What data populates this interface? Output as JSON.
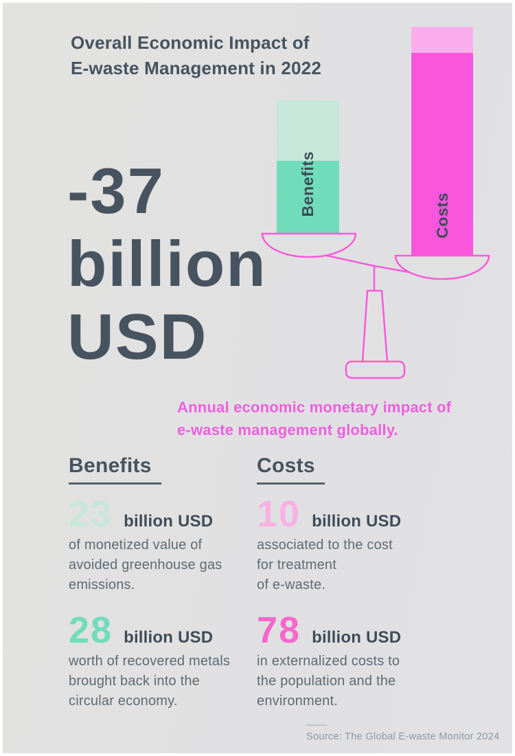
{
  "title": {
    "lines": [
      "Overall Economic Impact of",
      "E-waste Management in 2022"
    ]
  },
  "headline": {
    "lines": [
      "-37",
      "billion",
      "USD"
    ]
  },
  "scale": {
    "benefits_label": "Benefits",
    "costs_label": "Costs"
  },
  "subtitle": {
    "lines": [
      "Annual economic monetary impact of",
      "e-waste management globally."
    ]
  },
  "sections": {
    "benefits": {
      "header": "Benefits",
      "items": [
        {
          "value": "23",
          "unit": "billion USD",
          "lines": [
            "of monetized value of",
            "avoided greenhouse gas",
            "emissions."
          ]
        },
        {
          "value": "28",
          "unit": "billion USD",
          "lines": [
            "worth of recovered metals",
            "brought back into the",
            "circular economy."
          ]
        }
      ]
    },
    "costs": {
      "header": "Costs",
      "items": [
        {
          "value": "10",
          "unit": "billion USD",
          "lines": [
            "associated to the cost",
            "for treatment",
            "of e-waste."
          ]
        },
        {
          "value": "78",
          "unit": "billion USD",
          "lines": [
            "in externalized costs to",
            "the population and the",
            "environment."
          ]
        }
      ]
    }
  },
  "source": "Source: The Global E-waste Monitor 2024",
  "colors": {
    "background": "#e1e1e2",
    "ink_dark": "#46535f",
    "ink_body": "#5d6a74",
    "mint_light": "#c6e7da",
    "mint": "#70dcba",
    "pink_light": "#fcaeec",
    "magenta": "#f955dd",
    "pink_text": "#ee5fe0",
    "scale_outline": "#f95ada",
    "value_23": "#c6e7da",
    "value_28": "#70dcba",
    "value_10": "#f9b0e2",
    "value_78": "#f767cd",
    "source_text": "#8d98a1"
  },
  "chart_data": {
    "type": "bar",
    "subtype": "stacked bars on tilted balance scale",
    "title": "Overall Economic Impact of E-waste Management in 2022",
    "unit": "billion USD",
    "net_total": -37,
    "categories": [
      "Benefits",
      "Costs"
    ],
    "bars": [
      {
        "label": "Benefits",
        "total": 51,
        "segments": [
          {
            "value": 23,
            "label": "monetized value of avoided greenhouse gas emissions",
            "color": "#c6e7da",
            "position": "top"
          },
          {
            "value": 28,
            "label": "recovered metals brought back into the circular economy",
            "color": "#70dcba",
            "position": "bottom"
          }
        ]
      },
      {
        "label": "Costs",
        "total": 88,
        "segments": [
          {
            "value": 10,
            "label": "cost for treatment of e-waste",
            "color": "#fcaeec",
            "position": "top"
          },
          {
            "value": 78,
            "label": "externalized costs to the population and the environment",
            "color": "#f955dd",
            "position": "bottom"
          }
        ]
      }
    ],
    "pixels_per_billion": 3.8,
    "legend_position": "none",
    "grid": false
  }
}
